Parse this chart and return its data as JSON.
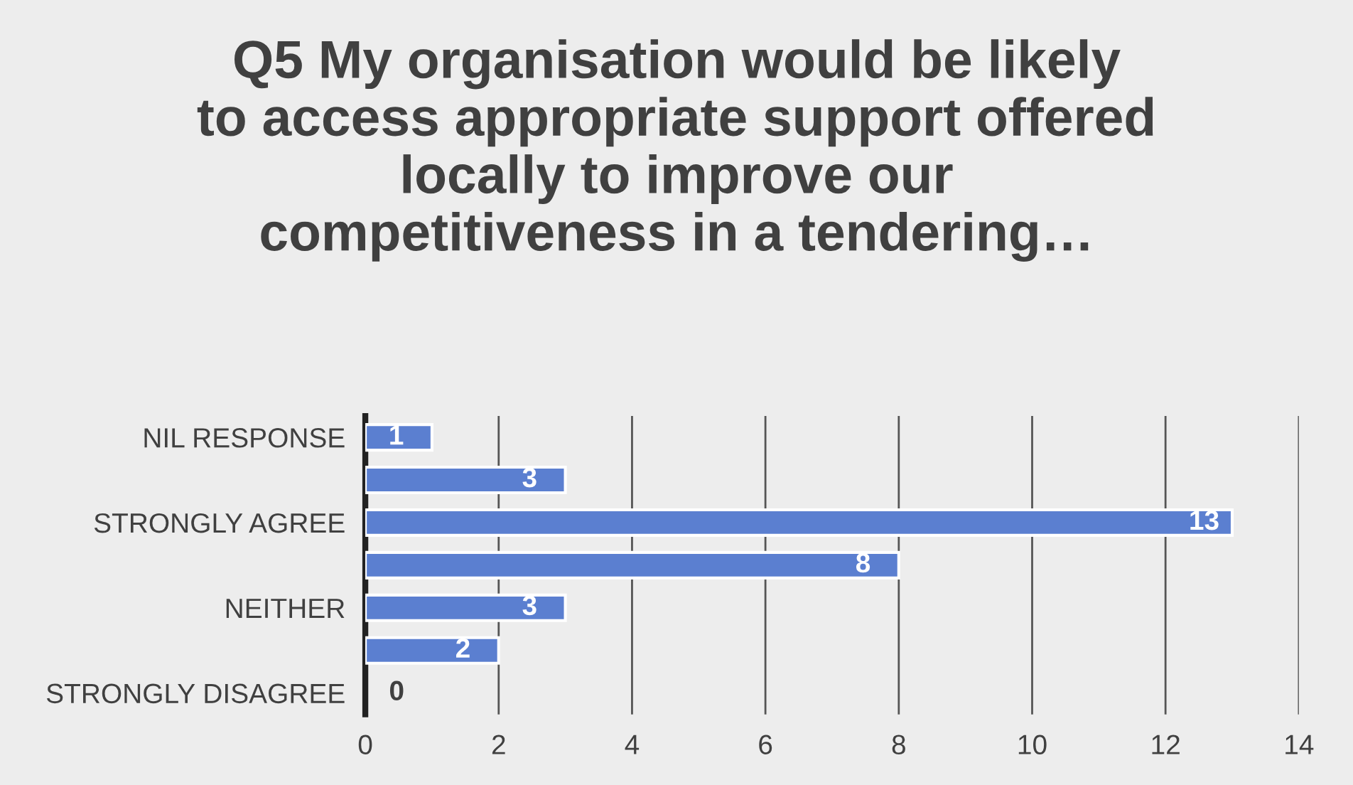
{
  "chart_data": {
    "type": "bar",
    "orientation": "horizontal",
    "title": "Q5 My organisation would be likely\nto access appropriate support offered\nlocally to improve our\ncompetitiveness in a tendering…",
    "categories": [
      "NIL RESPONSE",
      null,
      "STRONGLY AGREE",
      null,
      "NEITHER",
      null,
      "STRONGLY DISAGREE"
    ],
    "values": [
      1,
      3,
      13,
      8,
      3,
      2,
      0
    ],
    "color": "#5b7fd0",
    "xlim": [
      0,
      14
    ],
    "xticks": [
      0,
      2,
      4,
      6,
      8,
      10,
      12,
      14
    ],
    "grid": "x",
    "data_labels": true,
    "legend": false
  }
}
